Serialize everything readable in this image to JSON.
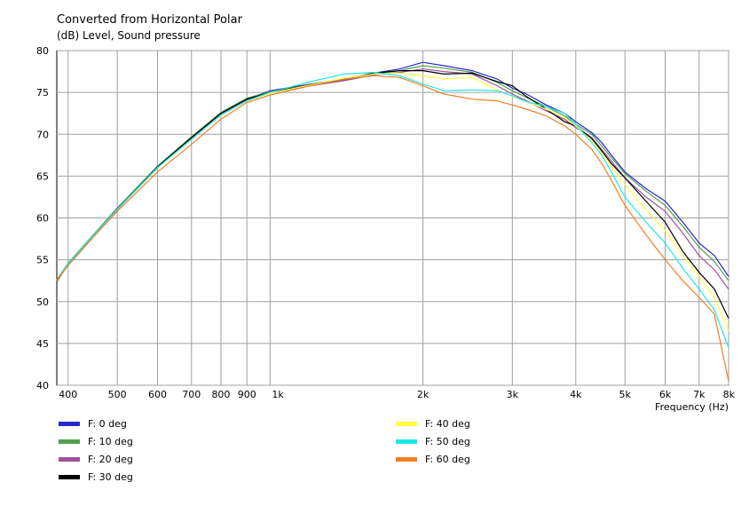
{
  "chart_data": {
    "type": "line",
    "title": "Converted from Horizontal Polar",
    "subtitle": "(dB)  Level, Sound pressure",
    "xlabel": "Frequency  (Hz)",
    "xscale": "log",
    "xlim": [
      380,
      8000
    ],
    "ylim": [
      40,
      80
    ],
    "grid": true,
    "legend_position": "bottom",
    "x_ticks": [
      {
        "value": 400,
        "label": "400"
      },
      {
        "value": 500,
        "label": "500"
      },
      {
        "value": 600,
        "label": "600"
      },
      {
        "value": 700,
        "label": "700"
      },
      {
        "value": 800,
        "label": "800"
      },
      {
        "value": 900,
        "label": "900"
      },
      {
        "value": 1000,
        "label": "1k"
      },
      {
        "value": 2000,
        "label": "2k"
      },
      {
        "value": 3000,
        "label": "3k"
      },
      {
        "value": 4000,
        "label": "4k"
      },
      {
        "value": 5000,
        "label": "5k"
      },
      {
        "value": 6000,
        "label": "6k"
      },
      {
        "value": 7000,
        "label": "7k"
      },
      {
        "value": 8000,
        "label": "8k"
      }
    ],
    "y_ticks": [
      {
        "value": 40,
        "label": "40"
      },
      {
        "value": 45,
        "label": "45"
      },
      {
        "value": 50,
        "label": "50"
      },
      {
        "value": 55,
        "label": "55"
      },
      {
        "value": 60,
        "label": "60"
      },
      {
        "value": 65,
        "label": "65"
      },
      {
        "value": 70,
        "label": "70"
      },
      {
        "value": 75,
        "label": "75"
      },
      {
        "value": 80,
        "label": "80"
      }
    ],
    "series": [
      {
        "name": "F: 0 deg",
        "color": "#2828c8",
        "points": [
          [
            380,
            52.5
          ],
          [
            400,
            54.5
          ],
          [
            450,
            58.0
          ],
          [
            500,
            61.0
          ],
          [
            600,
            66.0
          ],
          [
            700,
            69.5
          ],
          [
            800,
            72.5
          ],
          [
            900,
            74.2
          ],
          [
            1000,
            75.2
          ],
          [
            1200,
            76.0
          ],
          [
            1400,
            76.6
          ],
          [
            1600,
            77.3
          ],
          [
            1800,
            77.8
          ],
          [
            2000,
            78.6
          ],
          [
            2200,
            78.2
          ],
          [
            2500,
            77.6
          ],
          [
            2800,
            76.6
          ],
          [
            3000,
            75.5
          ],
          [
            3200,
            74.8
          ],
          [
            3500,
            73.5
          ],
          [
            3800,
            72.5
          ],
          [
            4000,
            71.5
          ],
          [
            4300,
            70.2
          ],
          [
            4500,
            69.0
          ],
          [
            4700,
            67.5
          ],
          [
            5000,
            65.5
          ],
          [
            5500,
            63.5
          ],
          [
            6000,
            62.0
          ],
          [
            6500,
            59.5
          ],
          [
            7000,
            57.0
          ],
          [
            7500,
            55.5
          ],
          [
            8000,
            53.0
          ]
        ]
      },
      {
        "name": "F: 10 deg",
        "color": "#50a050",
        "points": [
          [
            380,
            52.6
          ],
          [
            400,
            54.6
          ],
          [
            450,
            58.1
          ],
          [
            500,
            61.2
          ],
          [
            600,
            66.2
          ],
          [
            700,
            69.7
          ],
          [
            800,
            72.6
          ],
          [
            900,
            74.3
          ],
          [
            1000,
            75.1
          ],
          [
            1200,
            75.9
          ],
          [
            1400,
            76.5
          ],
          [
            1600,
            77.2
          ],
          [
            1800,
            77.6
          ],
          [
            2000,
            78.2
          ],
          [
            2200,
            77.9
          ],
          [
            2500,
            77.4
          ],
          [
            2800,
            76.2
          ],
          [
            3000,
            75.2
          ],
          [
            3200,
            74.4
          ],
          [
            3500,
            73.3
          ],
          [
            3800,
            72.2
          ],
          [
            4000,
            71.2
          ],
          [
            4300,
            70.0
          ],
          [
            4500,
            68.6
          ],
          [
            4700,
            67.2
          ],
          [
            5000,
            65.3
          ],
          [
            5500,
            63.2
          ],
          [
            6000,
            61.5
          ],
          [
            6500,
            59.0
          ],
          [
            7000,
            56.5
          ],
          [
            7500,
            54.8
          ],
          [
            8000,
            52.5
          ]
        ]
      },
      {
        "name": "F: 20 deg",
        "color": "#a050a0",
        "points": [
          [
            380,
            52.5
          ],
          [
            400,
            54.5
          ],
          [
            450,
            58.0
          ],
          [
            500,
            61.1
          ],
          [
            600,
            66.0
          ],
          [
            700,
            69.5
          ],
          [
            800,
            72.4
          ],
          [
            900,
            74.1
          ],
          [
            1000,
            75.0
          ],
          [
            1200,
            75.8
          ],
          [
            1400,
            76.4
          ],
          [
            1600,
            77.1
          ],
          [
            1800,
            77.4
          ],
          [
            2000,
            77.8
          ],
          [
            2200,
            77.5
          ],
          [
            2500,
            77.2
          ],
          [
            2800,
            75.8
          ],
          [
            3000,
            74.8
          ],
          [
            3200,
            74.0
          ],
          [
            3500,
            72.8
          ],
          [
            3800,
            71.8
          ],
          [
            4000,
            70.8
          ],
          [
            4300,
            69.6
          ],
          [
            4500,
            68.2
          ],
          [
            4700,
            66.8
          ],
          [
            5000,
            64.8
          ],
          [
            5500,
            62.5
          ],
          [
            6000,
            60.8
          ],
          [
            6500,
            58.2
          ],
          [
            7000,
            55.5
          ],
          [
            7500,
            53.8
          ],
          [
            8000,
            51.5
          ]
        ]
      },
      {
        "name": "F: 30 deg",
        "color": "#000000",
        "points": [
          [
            380,
            52.4
          ],
          [
            400,
            54.4
          ],
          [
            450,
            58.0
          ],
          [
            500,
            61.0
          ],
          [
            600,
            66.1
          ],
          [
            700,
            69.6
          ],
          [
            800,
            72.5
          ],
          [
            900,
            74.2
          ],
          [
            1000,
            75.0
          ],
          [
            1200,
            75.9
          ],
          [
            1400,
            76.6
          ],
          [
            1600,
            77.3
          ],
          [
            1800,
            77.6
          ],
          [
            2000,
            77.6
          ],
          [
            2200,
            77.2
          ],
          [
            2500,
            77.3
          ],
          [
            2800,
            76.3
          ],
          [
            3000,
            75.8
          ],
          [
            3200,
            74.5
          ],
          [
            3500,
            73.0
          ],
          [
            3800,
            71.5
          ],
          [
            4000,
            71.0
          ],
          [
            4300,
            69.5
          ],
          [
            4500,
            68.0
          ],
          [
            4700,
            66.5
          ],
          [
            5000,
            64.8
          ],
          [
            5500,
            62.0
          ],
          [
            6000,
            59.5
          ],
          [
            6500,
            56.0
          ],
          [
            7000,
            53.5
          ],
          [
            7500,
            51.5
          ],
          [
            8000,
            48.0
          ]
        ]
      },
      {
        "name": "F: 40 deg",
        "color": "#ffff40",
        "points": [
          [
            380,
            52.5
          ],
          [
            400,
            54.5
          ],
          [
            450,
            58.0
          ],
          [
            500,
            61.0
          ],
          [
            600,
            66.0
          ],
          [
            700,
            69.4
          ],
          [
            800,
            72.3
          ],
          [
            900,
            74.0
          ],
          [
            1000,
            74.9
          ],
          [
            1200,
            75.9
          ],
          [
            1400,
            76.7
          ],
          [
            1600,
            77.2
          ],
          [
            1800,
            77.3
          ],
          [
            2000,
            77.0
          ],
          [
            2200,
            76.6
          ],
          [
            2500,
            76.8
          ],
          [
            2800,
            75.3
          ],
          [
            3000,
            74.5
          ],
          [
            3200,
            73.9
          ],
          [
            3500,
            73.0
          ],
          [
            3800,
            72.0
          ],
          [
            4000,
            71.0
          ],
          [
            4300,
            69.2
          ],
          [
            4500,
            67.8
          ],
          [
            4700,
            66.2
          ],
          [
            5000,
            64.0
          ],
          [
            5500,
            61.0
          ],
          [
            6000,
            58.5
          ],
          [
            6500,
            55.5
          ],
          [
            7000,
            53.0
          ],
          [
            7500,
            50.5
          ],
          [
            8000,
            46.5
          ]
        ]
      },
      {
        "name": "F: 50 deg",
        "color": "#20e8e8",
        "points": [
          [
            380,
            52.5
          ],
          [
            400,
            54.5
          ],
          [
            450,
            58.0
          ],
          [
            500,
            61.0
          ],
          [
            600,
            66.0
          ],
          [
            700,
            69.4
          ],
          [
            800,
            72.3
          ],
          [
            900,
            74.0
          ],
          [
            1000,
            75.0
          ],
          [
            1200,
            76.3
          ],
          [
            1400,
            77.2
          ],
          [
            1600,
            77.4
          ],
          [
            1800,
            77.0
          ],
          [
            2000,
            76.0
          ],
          [
            2200,
            75.2
          ],
          [
            2500,
            75.3
          ],
          [
            2800,
            75.2
          ],
          [
            3000,
            74.6
          ],
          [
            3200,
            73.9
          ],
          [
            3500,
            73.3
          ],
          [
            3800,
            72.5
          ],
          [
            4000,
            71.2
          ],
          [
            4300,
            69.0
          ],
          [
            4500,
            67.5
          ],
          [
            4700,
            65.5
          ],
          [
            5000,
            62.5
          ],
          [
            5500,
            59.5
          ],
          [
            6000,
            57.0
          ],
          [
            6500,
            54.0
          ],
          [
            7000,
            51.5
          ],
          [
            7500,
            49.0
          ],
          [
            8000,
            44.5
          ]
        ]
      },
      {
        "name": "F: 60 deg",
        "color": "#f08020",
        "points": [
          [
            380,
            52.5
          ],
          [
            400,
            54.3
          ],
          [
            450,
            57.8
          ],
          [
            500,
            60.8
          ],
          [
            600,
            65.5
          ],
          [
            700,
            68.8
          ],
          [
            800,
            71.8
          ],
          [
            900,
            73.8
          ],
          [
            1000,
            74.7
          ],
          [
            1200,
            75.8
          ],
          [
            1400,
            76.6
          ],
          [
            1600,
            77.0
          ],
          [
            1800,
            76.8
          ],
          [
            2000,
            75.8
          ],
          [
            2200,
            74.8
          ],
          [
            2500,
            74.2
          ],
          [
            2800,
            74.0
          ],
          [
            3000,
            73.5
          ],
          [
            3200,
            73.0
          ],
          [
            3500,
            72.2
          ],
          [
            3800,
            71.0
          ],
          [
            4000,
            70.0
          ],
          [
            4300,
            68.2
          ],
          [
            4500,
            66.5
          ],
          [
            4700,
            64.5
          ],
          [
            5000,
            61.5
          ],
          [
            5500,
            58.0
          ],
          [
            6000,
            55.0
          ],
          [
            6500,
            52.5
          ],
          [
            7000,
            50.5
          ],
          [
            7500,
            48.5
          ],
          [
            8000,
            40.5
          ]
        ]
      }
    ]
  }
}
